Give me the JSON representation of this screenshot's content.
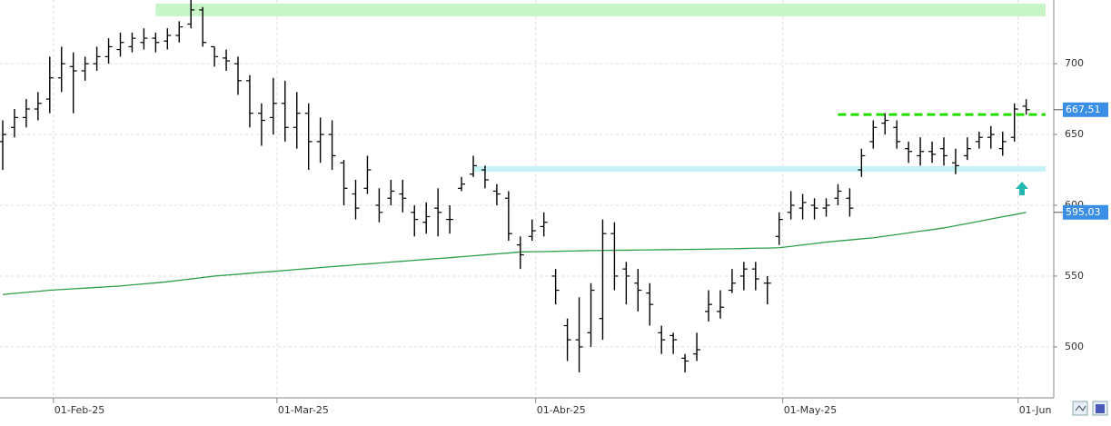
{
  "chart_data": {
    "type": "ohlc",
    "categories": [
      null,
      null,
      null,
      null,
      "01-Feb-25",
      null,
      null,
      null,
      null,
      null,
      null,
      null,
      null,
      null,
      null,
      null,
      null,
      null,
      null,
      null,
      null,
      null,
      null,
      "01-Mar-25",
      null,
      null,
      null,
      null,
      null,
      null,
      null,
      null,
      null,
      null,
      null,
      null,
      null,
      null,
      null,
      null,
      null,
      null,
      null,
      null,
      null,
      "01-Abr-25",
      null,
      null,
      null,
      null,
      null,
      null,
      null,
      null,
      null,
      null,
      null,
      null,
      null,
      null,
      null,
      null,
      null,
      null,
      null,
      null,
      "01-May-25",
      null,
      null,
      null,
      null,
      null,
      null,
      null,
      null,
      null,
      null,
      null,
      null,
      null,
      null,
      null,
      null,
      null,
      null,
      null,
      "01-Jun",
      null
    ],
    "open": [
      645,
      655,
      662,
      668,
      675,
      690,
      698,
      695,
      700,
      705,
      710,
      712,
      715,
      718,
      716,
      720,
      728,
      738,
      712,
      704,
      700,
      688,
      665,
      662,
      672,
      655,
      665,
      645,
      650,
      630,
      608,
      612,
      600,
      605,
      608,
      595,
      588,
      598,
      590,
      612,
      622,
      625,
      610,
      605,
      572,
      578,
      585,
      550,
      515,
      505,
      510,
      520,
      580,
      555,
      545,
      538,
      510,
      508,
      492,
      495,
      525,
      525,
      540,
      550,
      555,
      545,
      578,
      595,
      598,
      600,
      598,
      605,
      605,
      625,
      645,
      658,
      655,
      640,
      635,
      638,
      640,
      630,
      635,
      645,
      648,
      640,
      648,
      670
    ],
    "high": [
      660,
      668,
      675,
      680,
      705,
      712,
      708,
      705,
      712,
      718,
      722,
      722,
      725,
      722,
      725,
      730,
      745,
      740,
      712,
      710,
      705,
      692,
      672,
      690,
      688,
      680,
      672,
      662,
      660,
      632,
      618,
      635,
      612,
      618,
      618,
      600,
      602,
      612,
      600,
      620,
      635,
      628,
      615,
      610,
      578,
      590,
      595,
      555,
      520,
      535,
      545,
      590,
      588,
      560,
      555,
      545,
      515,
      510,
      495,
      510,
      540,
      540,
      555,
      560,
      560,
      550,
      595,
      610,
      608,
      605,
      605,
      615,
      612,
      640,
      660,
      665,
      660,
      645,
      648,
      645,
      648,
      640,
      648,
      652,
      656,
      652,
      672,
      675
    ],
    "low": [
      625,
      648,
      655,
      660,
      665,
      680,
      665,
      688,
      695,
      700,
      705,
      708,
      710,
      708,
      710,
      715,
      725,
      712,
      698,
      695,
      678,
      655,
      642,
      650,
      645,
      640,
      625,
      630,
      625,
      600,
      590,
      608,
      588,
      600,
      595,
      578,
      580,
      578,
      580,
      610,
      620,
      612,
      600,
      575,
      555,
      575,
      578,
      530,
      490,
      482,
      500,
      505,
      540,
      530,
      525,
      515,
      495,
      495,
      482,
      490,
      518,
      520,
      538,
      540,
      540,
      530,
      572,
      590,
      590,
      590,
      592,
      600,
      592,
      620,
      640,
      650,
      640,
      630,
      628,
      630,
      628,
      622,
      632,
      640,
      640,
      635,
      645,
      664
    ],
    "close": [
      650,
      662,
      668,
      672,
      690,
      700,
      695,
      700,
      705,
      712,
      715,
      718,
      718,
      715,
      720,
      726,
      738,
      715,
      705,
      702,
      688,
      665,
      660,
      672,
      655,
      665,
      645,
      650,
      635,
      612,
      598,
      625,
      595,
      610,
      605,
      590,
      592,
      595,
      590,
      615,
      628,
      618,
      608,
      580,
      565,
      582,
      588,
      540,
      505,
      500,
      540,
      580,
      550,
      550,
      540,
      530,
      505,
      505,
      490,
      498,
      530,
      528,
      545,
      555,
      548,
      545,
      590,
      600,
      602,
      598,
      600,
      610,
      598,
      635,
      655,
      660,
      645,
      638,
      638,
      636,
      635,
      628,
      640,
      648,
      650,
      645,
      668,
      667.51
    ],
    "bar_color": "#000000",
    "moving_average": {
      "color": "#2e9e4a",
      "values": [
        537,
        537.8,
        538.5,
        539.2,
        540,
        540.5,
        541,
        541.5,
        542,
        542.5,
        543,
        543.8,
        544.5,
        545.2,
        546,
        547,
        548,
        549,
        550,
        550.7,
        551.3,
        552,
        552.7,
        553.3,
        554,
        554.7,
        555.3,
        556,
        556.7,
        557.3,
        558,
        558.6,
        559.2,
        559.9,
        560.5,
        561.1,
        561.8,
        562.4,
        563,
        563.7,
        564.3,
        565,
        565.7,
        566.3,
        567,
        567.2,
        567.3,
        567.5,
        567.7,
        567.8,
        568,
        568.1,
        568.2,
        568.3,
        568.4,
        568.5,
        568.6,
        568.7,
        568.8,
        568.9,
        569,
        569.2,
        569.3,
        569.5,
        569.7,
        569.8,
        570,
        571,
        572,
        573,
        574,
        574.8,
        575.5,
        576.3,
        577,
        578.2,
        579.3,
        580.5,
        581.7,
        582.8,
        584,
        585.6,
        587.1,
        588.7,
        590.3,
        591.9,
        593.4,
        595.03
      ]
    },
    "zones": [
      {
        "from": 733.5,
        "to": 742.5,
        "start": 13,
        "color": "#c8f5c8"
      },
      {
        "from": 623.7,
        "to": 627.6,
        "start": 40,
        "color": "#c6f3f6"
      }
    ],
    "levels": [
      {
        "value": 664.1,
        "start": 71,
        "color": "#22dd00"
      }
    ],
    "price_labels": [
      {
        "value": 667.51,
        "label": "667,51",
        "color": "#3a8ee6"
      },
      {
        "value": 595.03,
        "label": "595,03",
        "color": "#3a8ee6"
      }
    ],
    "ylim": [
      464,
      745
    ],
    "yticks": [
      500,
      550,
      600,
      650,
      700
    ],
    "grid": true
  }
}
